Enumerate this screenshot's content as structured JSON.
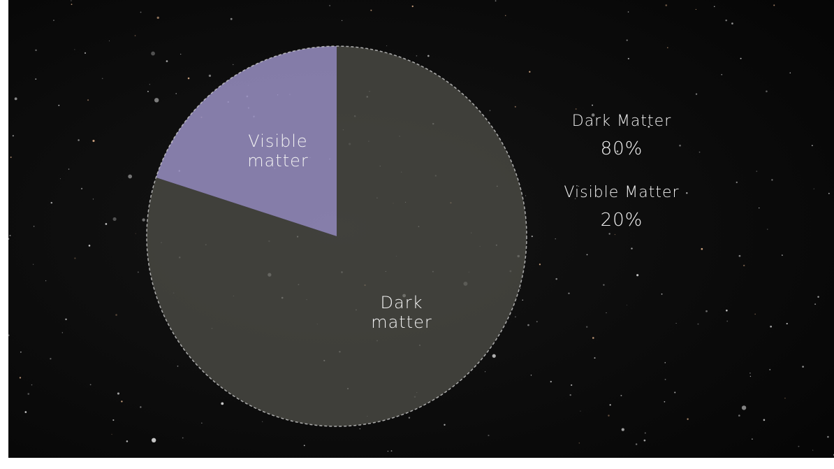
{
  "chart_data": {
    "type": "pie",
    "categories": [
      "Dark matter",
      "Visible matter"
    ],
    "values": [
      80,
      20
    ],
    "value_labels": [
      "80%",
      "20%"
    ],
    "legend_labels": [
      "Dark Matter",
      "Visible Matter"
    ],
    "colors": [
      "#50504a",
      "#9a90c4"
    ]
  }
}
